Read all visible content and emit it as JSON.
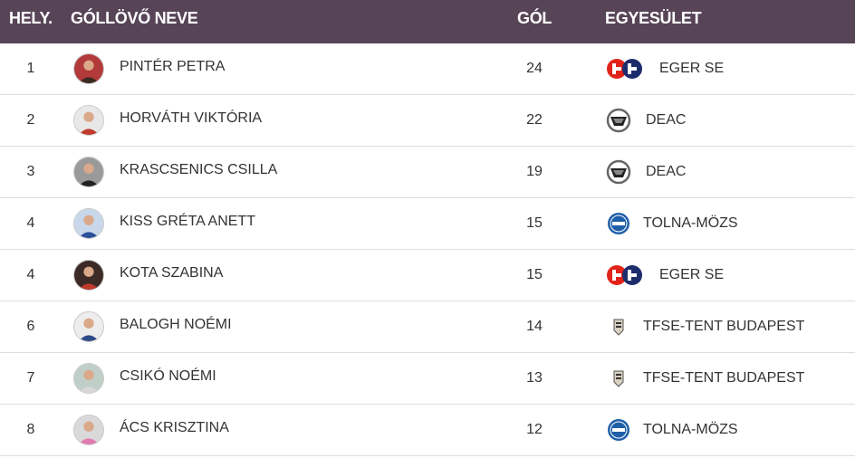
{
  "header": {
    "rank": "HELY.",
    "name": "GÓLLÖVŐ NEVE",
    "goals": "GÓL",
    "club": "EGYESÜLET"
  },
  "rows": [
    {
      "rank": "1",
      "name": "PINTÉR PETRA",
      "goals": "24",
      "club": "EGER SE",
      "logo": "eger-se-logo-icon"
    },
    {
      "rank": "2",
      "name": "HORVÁTH VIKTÓRIA",
      "goals": "22",
      "club": "DEAC",
      "logo": "deac-logo-icon"
    },
    {
      "rank": "3",
      "name": "KRASCSENICS CSILLA",
      "goals": "19",
      "club": "DEAC",
      "logo": "deac-logo-icon"
    },
    {
      "rank": "4",
      "name": "KISS GRÉTA ANETT",
      "goals": "15",
      "club": "TOLNA-MÖZS",
      "logo": "tolna-mozs-logo-icon"
    },
    {
      "rank": "4",
      "name": "KOTA SZABINA",
      "goals": "15",
      "club": "EGER SE",
      "logo": "eger-se-logo-icon"
    },
    {
      "rank": "6",
      "name": "BALOGH NOÉMI",
      "goals": "14",
      "club": "TFSE-TENT BUDAPEST",
      "logo": "tfse-logo-icon"
    },
    {
      "rank": "7",
      "name": "CSIKÓ NOÉMI",
      "goals": "13",
      "club": "TFSE-TENT BUDAPEST",
      "logo": "tfse-logo-icon"
    },
    {
      "rank": "8",
      "name": "ÁCS KRISZTINA",
      "goals": "12",
      "club": "TOLNA-MÖZS",
      "logo": "tolna-mozs-logo-icon"
    }
  ],
  "colors": {
    "header_bg": "#574457",
    "eger_red": "#e2231a",
    "eger_navy": "#1d2d6b",
    "tolna_blue": "#1f5fa8"
  }
}
